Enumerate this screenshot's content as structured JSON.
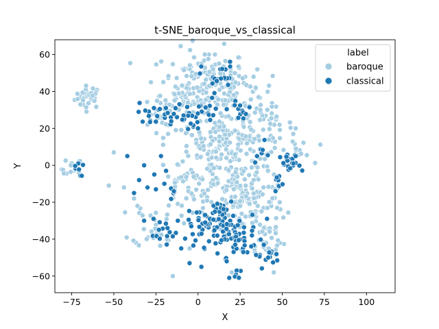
{
  "chart_data": {
    "type": "scatter",
    "title": "t-SNE_baroque_vs_classical",
    "xlabel": "X",
    "ylabel": "Y",
    "xlim": [
      -85,
      117
    ],
    "ylim": [
      -69,
      68
    ],
    "xticks": [
      -75,
      -50,
      -25,
      0,
      25,
      50,
      75,
      100
    ],
    "yticks": [
      -60,
      -40,
      -20,
      0,
      20,
      40,
      60
    ],
    "grid": false,
    "legend": {
      "title": "label",
      "position": "top-right"
    },
    "series": [
      {
        "name": "baroque",
        "color": "#a6cee3",
        "clusters": [
          [
            -65,
            37,
            4,
            3,
            35
          ],
          [
            -75,
            -2,
            3,
            3,
            12
          ],
          [
            5,
            45,
            13,
            9,
            150
          ],
          [
            -8,
            38,
            7,
            6,
            40
          ],
          [
            28,
            38,
            8,
            6,
            30
          ],
          [
            -18,
            28,
            7,
            5,
            30
          ],
          [
            42,
            22,
            7,
            5,
            30
          ],
          [
            18,
            18,
            12,
            7,
            60
          ],
          [
            22,
            2,
            15,
            9,
            140
          ],
          [
            60,
            8,
            4,
            4,
            12
          ],
          [
            -8,
            -10,
            8,
            7,
            35
          ],
          [
            28,
            -20,
            12,
            9,
            120
          ],
          [
            -25,
            -32,
            7,
            6,
            30
          ],
          [
            40,
            -40,
            6,
            6,
            30
          ],
          [
            0,
            10,
            8,
            6,
            25
          ]
        ],
        "points": [
          [
            -50,
            7
          ],
          [
            -38,
            -18
          ],
          [
            -44,
            -12
          ],
          [
            -36,
            -22
          ],
          [
            -53,
            -11
          ],
          [
            -15,
            -60
          ],
          [
            20,
            -58
          ],
          [
            2,
            55
          ],
          [
            58,
            20
          ],
          [
            -30,
            22
          ],
          [
            37,
            30
          ],
          [
            10,
            60
          ],
          [
            -28,
            45
          ],
          [
            45,
            -58
          ],
          [
            -5,
            -45
          ],
          [
            8,
            -20
          ],
          [
            33,
            48
          ]
        ]
      },
      {
        "name": "classical",
        "color": "#1f78b4",
        "clusters": [
          [
            -72,
            -2,
            2,
            2,
            8
          ],
          [
            -28,
            28,
            4,
            3,
            15
          ],
          [
            -10,
            26,
            5,
            4,
            25
          ],
          [
            12,
            48,
            5,
            4,
            20
          ],
          [
            5,
            28,
            4,
            4,
            12
          ],
          [
            26,
            30,
            4,
            3,
            12
          ],
          [
            55,
            0,
            3,
            3,
            25
          ],
          [
            48,
            -8,
            2,
            2,
            8
          ],
          [
            8,
            -32,
            7,
            6,
            60
          ],
          [
            20,
            -35,
            8,
            5,
            40
          ],
          [
            -20,
            -38,
            4,
            4,
            15
          ],
          [
            40,
            -48,
            4,
            3,
            15
          ],
          [
            23,
            -60,
            2,
            2,
            6
          ],
          [
            15,
            -25,
            3,
            3,
            8
          ],
          [
            -15,
            -15,
            2,
            2,
            5
          ],
          [
            38,
            10,
            3,
            3,
            6
          ],
          [
            28,
            -45,
            4,
            3,
            12
          ]
        ],
        "points": [
          [
            -32,
            0
          ],
          [
            -22,
            5
          ],
          [
            -19,
            -3
          ],
          [
            -26,
            -5
          ],
          [
            -30,
            -12
          ],
          [
            -25,
            -13
          ],
          [
            -38,
            -15
          ],
          [
            -35,
            -8
          ],
          [
            -5,
            -53
          ],
          [
            2,
            -55
          ],
          [
            -10,
            -45
          ],
          [
            17,
            -52
          ],
          [
            32,
            -38
          ],
          [
            -42,
            5
          ],
          [
            -32,
            -30
          ],
          [
            46,
            -14
          ],
          [
            -12,
            -30
          ],
          [
            -20,
            -10
          ],
          [
            0,
            20
          ],
          [
            35,
            5
          ]
        ]
      }
    ]
  }
}
